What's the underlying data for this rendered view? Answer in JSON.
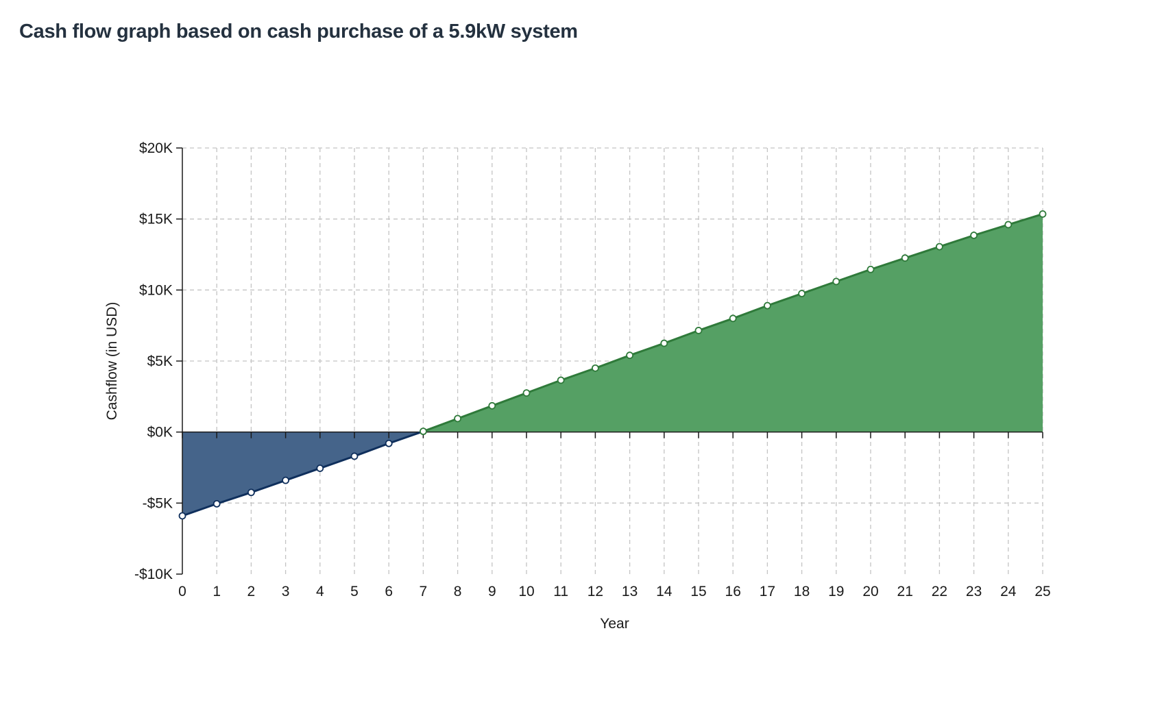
{
  "page": {
    "title": "Cash flow graph based on cash purchase of a 5.9kW system"
  },
  "chart_data": {
    "type": "area",
    "title": "Cash flow graph based on cash purchase of a 5.9kW system",
    "xlabel": "Year",
    "ylabel": "Cashflow (in USD)",
    "x": [
      0,
      1,
      2,
      3,
      4,
      5,
      6,
      7,
      8,
      9,
      10,
      11,
      12,
      13,
      14,
      15,
      16,
      17,
      18,
      19,
      20,
      21,
      22,
      23,
      24,
      25
    ],
    "values": [
      -5900,
      -5050,
      -4250,
      -3400,
      -2550,
      -1700,
      -800,
      50,
      950,
      1850,
      2750,
      3650,
      4500,
      5400,
      6250,
      7150,
      8000,
      8900,
      9750,
      10600,
      11450,
      12250,
      13050,
      13850,
      14600,
      15350
    ],
    "xlim": [
      0,
      25
    ],
    "ylim": [
      -10000,
      20000
    ],
    "x_ticks": [
      "0",
      "1",
      "2",
      "3",
      "4",
      "5",
      "6",
      "7",
      "8",
      "9",
      "10",
      "11",
      "12",
      "13",
      "14",
      "15",
      "16",
      "17",
      "18",
      "19",
      "20",
      "21",
      "22",
      "23",
      "24",
      "25"
    ],
    "y_tick_values": [
      -10000,
      -5000,
      0,
      5000,
      10000,
      15000,
      20000
    ],
    "y_ticks": [
      "-$10K",
      "-$5K",
      "$0K",
      "$5K",
      "$10K",
      "$15K",
      "$20K"
    ],
    "grid": true,
    "grid_style": "dashed",
    "colors": {
      "negative_fill": "#45648a",
      "negative_line": "#0f2f5c",
      "positive_fill": "#55a064",
      "positive_line": "#2f7a3a",
      "grid": "#c4c4c4",
      "axis": "#1a1a1a"
    }
  }
}
